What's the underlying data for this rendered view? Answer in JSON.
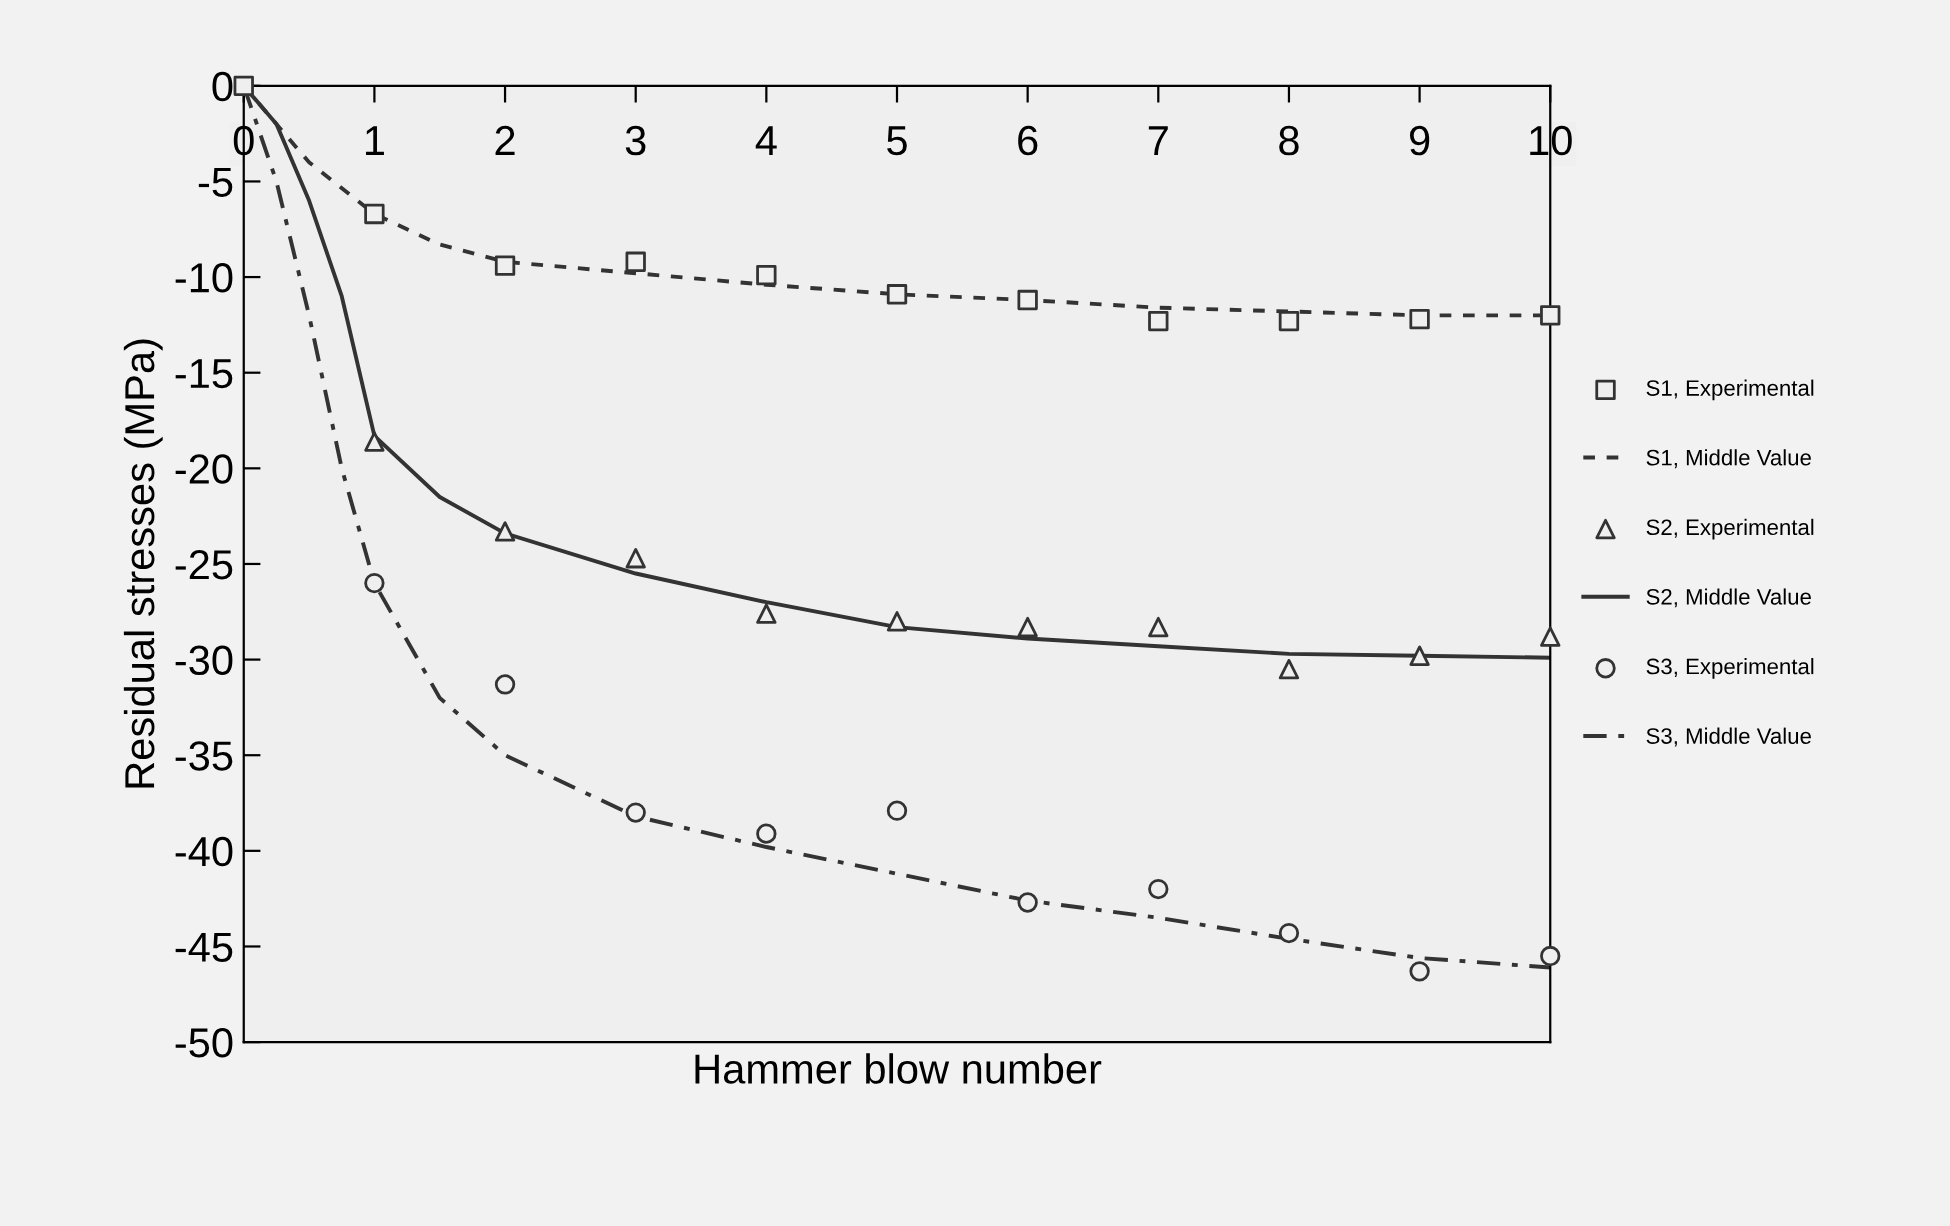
{
  "chart_data": {
    "type": "scatter",
    "xlabel": "Hammer blow number",
    "ylabel": "Residual stresses (MPa)",
    "xlim": [
      0,
      10
    ],
    "ylim": [
      -50,
      0
    ],
    "xticks": [
      0,
      1,
      2,
      3,
      4,
      5,
      6,
      7,
      8,
      9,
      10
    ],
    "yticks": [
      0,
      -5,
      -10,
      -15,
      -20,
      -25,
      -30,
      -35,
      -40,
      -45,
      -50
    ],
    "grid": false,
    "legend": "right",
    "series": [
      {
        "name": "S1, Experimental",
        "marker": "square",
        "color": "#333333",
        "x": [
          0,
          1,
          2,
          3,
          4,
          5,
          6,
          7,
          8,
          9,
          10
        ],
        "values": [
          0,
          -6.7,
          -9.4,
          -9.2,
          -9.9,
          -10.9,
          -11.2,
          -12.3,
          -12.3,
          -12.2,
          -12.0
        ]
      },
      {
        "name": "S1, Middle Value",
        "type": "line",
        "line_style": "dotted",
        "color": "#333333",
        "x": [
          0,
          0.5,
          1,
          1.5,
          2,
          3,
          4,
          5,
          6,
          7,
          8,
          9,
          10
        ],
        "values": [
          0,
          -4,
          -6.7,
          -8.3,
          -9.2,
          -9.8,
          -10.4,
          -10.9,
          -11.2,
          -11.6,
          -11.8,
          -12.0,
          -12.0
        ]
      },
      {
        "name": "S2, Experimental",
        "marker": "triangle",
        "color": "#333333",
        "x": [
          1,
          2,
          3,
          4,
          5,
          6,
          7,
          8,
          9,
          10
        ],
        "values": [
          -18.6,
          -23.3,
          -24.7,
          -27.6,
          -28.0,
          -28.3,
          -28.3,
          -30.5,
          -29.8,
          -28.8
        ]
      },
      {
        "name": "S2, Middle Value",
        "type": "line",
        "line_style": "solid",
        "color": "#333333",
        "x": [
          0,
          0.25,
          0.5,
          0.75,
          1,
          1.5,
          2,
          3,
          4,
          5,
          6,
          7,
          8,
          9,
          10
        ],
        "values": [
          0,
          -2,
          -6,
          -11,
          -18.3,
          -21.5,
          -23.4,
          -25.5,
          -27.0,
          -28.3,
          -28.9,
          -29.3,
          -29.7,
          -29.8,
          -29.9
        ]
      },
      {
        "name": "S3, Experimental",
        "marker": "circle",
        "color": "#333333",
        "x": [
          1,
          2,
          3,
          4,
          5,
          6,
          7,
          8,
          9,
          10
        ],
        "values": [
          -26.0,
          -31.3,
          -38.0,
          -39.1,
          -37.9,
          -42.7,
          -42.0,
          -44.3,
          -46.3,
          -45.5
        ]
      },
      {
        "name": "S3, Middle Value",
        "type": "line",
        "line_style": "dashed",
        "color": "#333333",
        "x": [
          0,
          0.25,
          0.5,
          0.75,
          1,
          1.5,
          2,
          3,
          4,
          5,
          6,
          7,
          8,
          9,
          10
        ],
        "values": [
          0,
          -5,
          -12,
          -20,
          -26,
          -32,
          -35,
          -38.2,
          -39.8,
          -41.2,
          -42.6,
          -43.5,
          -44.6,
          -45.6,
          -46.1
        ]
      }
    ]
  }
}
